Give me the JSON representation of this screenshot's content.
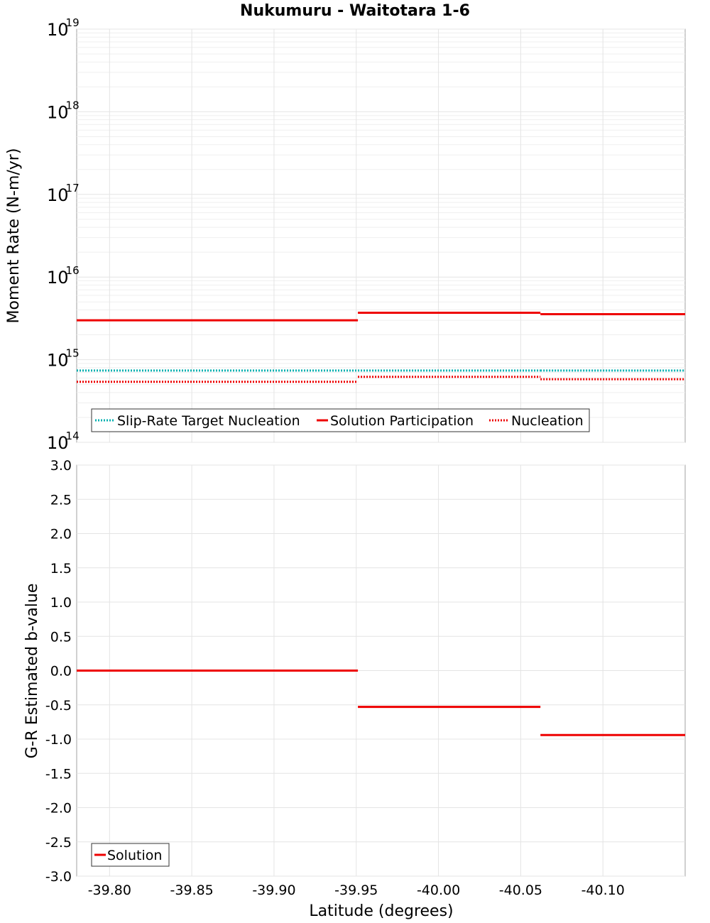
{
  "chart_data": [
    {
      "type": "line",
      "title": "Nukumuru - Waitotara 1-6",
      "ylabel": "Moment Rate (N-m/yr)",
      "xlabel": "",
      "yscale": "log",
      "ylim_exp": [
        14,
        19
      ],
      "y_ticks": [
        {
          "base": "10",
          "exp": "14",
          "value": 14
        },
        {
          "base": "10",
          "exp": "15",
          "value": 15
        },
        {
          "base": "10",
          "exp": "16",
          "value": 16
        },
        {
          "base": "10",
          "exp": "17",
          "value": 17
        },
        {
          "base": "10",
          "exp": "18",
          "value": 18
        },
        {
          "base": "10",
          "exp": "19",
          "value": 19
        }
      ],
      "xlim": [
        -39.78,
        -40.15
      ],
      "series": [
        {
          "name": "Slip-Rate Target Nucleation",
          "color": "#00b0b0",
          "style": "dotted",
          "segments": [
            {
              "x": [
                -39.78,
                -39.951
              ],
              "y": 740000000000000.0
            },
            {
              "x": [
                -39.951,
                -40.062
              ],
              "y": 740000000000000.0
            },
            {
              "x": [
                -40.062,
                -40.15
              ],
              "y": 740000000000000.0
            }
          ]
        },
        {
          "name": "Solution Participation",
          "color": "#ee0000",
          "style": "solid",
          "segments": [
            {
              "x": [
                -39.78,
                -39.951
              ],
              "y": 3000000000000000.0
            },
            {
              "x": [
                -39.951,
                -40.062
              ],
              "y": 3700000000000000.0
            },
            {
              "x": [
                -40.062,
                -40.15
              ],
              "y": 3550000000000000.0
            }
          ]
        },
        {
          "name": "Nucleation",
          "color": "#ee0000",
          "style": "dotted",
          "segments": [
            {
              "x": [
                -39.78,
                -39.951
              ],
              "y": 540000000000000.0
            },
            {
              "x": [
                -39.951,
                -40.062
              ],
              "y": 620000000000000.0
            },
            {
              "x": [
                -40.062,
                -40.15
              ],
              "y": 580000000000000.0
            }
          ]
        }
      ],
      "legend": "bottom-left"
    },
    {
      "type": "line",
      "title": "",
      "ylabel": "G-R Estimated b-value",
      "xlabel": "Latitude (degrees)",
      "ylim": [
        -3.0,
        3.0
      ],
      "y_ticks": [
        "-3.0",
        "-2.5",
        "-2.0",
        "-1.5",
        "-1.0",
        "-0.5",
        "0.0",
        "0.5",
        "1.0",
        "1.5",
        "2.0",
        "2.5",
        "3.0"
      ],
      "x_ticks": [
        "-39.80",
        "-39.85",
        "-39.90",
        "-39.95",
        "-40.00",
        "-40.05",
        "-40.10"
      ],
      "xlim": [
        -39.78,
        -40.15
      ],
      "series": [
        {
          "name": "Solution",
          "color": "#ee0000",
          "style": "solid",
          "segments": [
            {
              "x": [
                -39.78,
                -39.951
              ],
              "y": 0.0
            },
            {
              "x": [
                -39.951,
                -40.062
              ],
              "y": -0.53
            },
            {
              "x": [
                -40.062,
                -40.15
              ],
              "y": -0.94
            }
          ]
        }
      ],
      "legend": "bottom-left"
    }
  ]
}
